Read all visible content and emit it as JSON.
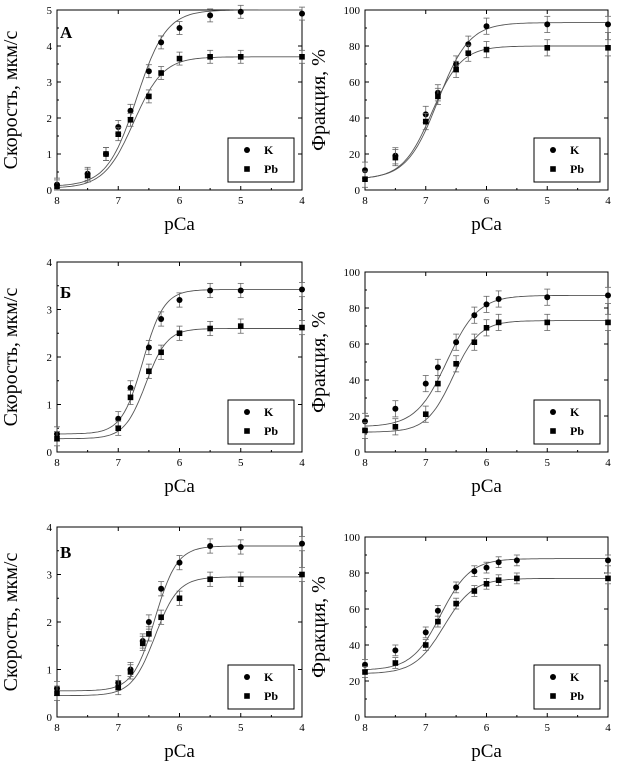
{
  "figure": {
    "rows": [
      {
        "label": "А"
      },
      {
        "label": "Б"
      },
      {
        "label": "В"
      }
    ]
  },
  "chart_data": [
    {
      "type": "scatter",
      "panel": "А",
      "xlabel": "pCa",
      "ylabel": "Скорость, мкм/с",
      "xlim": [
        8,
        4
      ],
      "x_reversed": true,
      "ylim": [
        0,
        5
      ],
      "xticks": [
        8,
        7,
        6,
        5,
        4
      ],
      "yticks": [
        0,
        1,
        2,
        3,
        4,
        5
      ],
      "grid": false,
      "legend_position": "bottom-right",
      "series": [
        {
          "name": "K",
          "marker": "circle",
          "x": [
            8.0,
            7.5,
            7.2,
            7.0,
            6.8,
            6.5,
            6.3,
            6.0,
            5.5,
            5.0,
            4.0
          ],
          "y": [
            0.15,
            0.45,
            1.0,
            1.75,
            2.2,
            3.3,
            4.1,
            4.5,
            4.85,
            4.95,
            4.9
          ],
          "fit": {
            "bottom": 0.1,
            "top": 5.0,
            "pCa50": 6.7,
            "hill": 1.8
          }
        },
        {
          "name": "Pb",
          "marker": "square",
          "x": [
            8.0,
            7.5,
            7.2,
            7.0,
            6.8,
            6.5,
            6.3,
            6.0,
            5.5,
            5.0,
            4.0
          ],
          "y": [
            0.1,
            0.4,
            1.0,
            1.55,
            1.95,
            2.6,
            3.25,
            3.65,
            3.7,
            3.7,
            3.7
          ],
          "fit": {
            "bottom": 0.05,
            "top": 3.7,
            "pCa50": 6.75,
            "hill": 1.8
          }
        }
      ]
    },
    {
      "type": "scatter",
      "panel": "А",
      "xlabel": "pCa",
      "ylabel": "Фракция, %",
      "xlim": [
        8,
        4
      ],
      "x_reversed": true,
      "ylim": [
        0,
        100
      ],
      "xticks": [
        8,
        7,
        6,
        5,
        4
      ],
      "yticks": [
        0,
        20,
        40,
        60,
        80,
        100
      ],
      "grid": false,
      "legend_position": "bottom-right",
      "series": [
        {
          "name": "K",
          "marker": "circle",
          "x": [
            8.0,
            7.5,
            7.0,
            6.8,
            6.5,
            6.3,
            6.0,
            5.0,
            4.0
          ],
          "y": [
            11,
            19,
            42,
            54,
            70,
            81,
            91,
            92,
            92
          ],
          "fit": {
            "bottom": 6,
            "top": 93,
            "pCa50": 6.8,
            "hill": 1.7
          }
        },
        {
          "name": "Pb",
          "marker": "square",
          "x": [
            8.0,
            7.5,
            7.0,
            6.8,
            6.5,
            6.3,
            6.0,
            5.0,
            4.0
          ],
          "y": [
            6,
            18,
            38,
            52,
            67,
            76,
            78,
            79,
            79
          ],
          "fit": {
            "bottom": 6,
            "top": 80,
            "pCa50": 6.9,
            "hill": 1.8
          }
        }
      ]
    },
    {
      "type": "scatter",
      "panel": "Б",
      "xlabel": "pCa",
      "ylabel": "Скорость, мкм/с",
      "xlim": [
        8,
        4
      ],
      "x_reversed": true,
      "ylim": [
        0,
        4
      ],
      "xticks": [
        8,
        7,
        6,
        5,
        4
      ],
      "yticks": [
        0,
        1,
        2,
        3,
        4
      ],
      "grid": false,
      "legend_position": "bottom-right",
      "series": [
        {
          "name": "K",
          "marker": "circle",
          "x": [
            8.0,
            7.0,
            6.8,
            6.5,
            6.3,
            6.0,
            5.5,
            5.0,
            4.0
          ],
          "y": [
            0.38,
            0.7,
            1.35,
            2.2,
            2.8,
            3.2,
            3.4,
            3.4,
            3.42
          ],
          "fit": {
            "bottom": 0.38,
            "top": 3.42,
            "pCa50": 6.6,
            "hill": 2.5
          }
        },
        {
          "name": "Pb",
          "marker": "square",
          "x": [
            8.0,
            7.0,
            6.8,
            6.5,
            6.3,
            6.0,
            5.5,
            5.0,
            4.0
          ],
          "y": [
            0.28,
            0.5,
            1.15,
            1.7,
            2.1,
            2.5,
            2.6,
            2.65,
            2.62
          ],
          "fit": {
            "bottom": 0.28,
            "top": 2.6,
            "pCa50": 6.55,
            "hill": 2.5
          }
        }
      ]
    },
    {
      "type": "scatter",
      "panel": "Б",
      "xlabel": "pCa",
      "ylabel": "Фракция, %",
      "xlim": [
        8,
        4
      ],
      "x_reversed": true,
      "ylim": [
        0,
        100
      ],
      "xticks": [
        8,
        7,
        6,
        5,
        4
      ],
      "yticks": [
        0,
        20,
        40,
        60,
        80,
        100
      ],
      "grid": false,
      "legend_position": "bottom-right",
      "series": [
        {
          "name": "K",
          "marker": "circle",
          "x": [
            8.0,
            7.5,
            7.0,
            6.8,
            6.5,
            6.2,
            6.0,
            5.8,
            5.0,
            4.0
          ],
          "y": [
            17,
            24,
            38,
            47,
            61,
            76,
            82,
            85,
            86,
            87
          ],
          "fit": {
            "bottom": 14,
            "top": 87,
            "pCa50": 6.65,
            "hill": 1.7
          }
        },
        {
          "name": "Pb",
          "marker": "square",
          "x": [
            8.0,
            7.5,
            7.0,
            6.8,
            6.5,
            6.2,
            6.0,
            5.8,
            5.0,
            4.0
          ],
          "y": [
            12,
            14,
            21,
            38,
            49,
            61,
            69,
            72,
            72,
            72
          ],
          "fit": {
            "bottom": 11,
            "top": 73,
            "pCa50": 6.55,
            "hill": 2.0
          }
        }
      ]
    },
    {
      "type": "scatter",
      "panel": "В",
      "xlabel": "pCa",
      "ylabel": "Скорость, мкм/с",
      "xlim": [
        8,
        4
      ],
      "x_reversed": true,
      "ylim": [
        0,
        4
      ],
      "xticks": [
        8,
        7,
        6,
        5,
        4
      ],
      "yticks": [
        0,
        1,
        2,
        3,
        4
      ],
      "grid": false,
      "legend_position": "bottom-right",
      "series": [
        {
          "name": "K",
          "marker": "circle",
          "x": [
            8.0,
            7.0,
            6.8,
            6.6,
            6.5,
            6.3,
            6.0,
            5.5,
            5.0,
            4.0
          ],
          "y": [
            0.6,
            0.72,
            1.0,
            1.6,
            2.0,
            2.7,
            3.25,
            3.6,
            3.58,
            3.65
          ],
          "fit": {
            "bottom": 0.55,
            "top": 3.6,
            "pCa50": 6.4,
            "hill": 2.4
          }
        },
        {
          "name": "Pb",
          "marker": "square",
          "x": [
            8.0,
            7.0,
            6.8,
            6.6,
            6.5,
            6.3,
            6.0,
            5.5,
            5.0,
            4.0
          ],
          "y": [
            0.5,
            0.62,
            0.95,
            1.55,
            1.75,
            2.1,
            2.5,
            2.9,
            2.9,
            3.0
          ],
          "fit": {
            "bottom": 0.45,
            "top": 2.95,
            "pCa50": 6.4,
            "hill": 2.3
          }
        }
      ]
    },
    {
      "type": "scatter",
      "panel": "В",
      "xlabel": "pCa",
      "ylabel": "Фракция, %",
      "xlim": [
        8,
        4
      ],
      "x_reversed": true,
      "ylim": [
        0,
        100
      ],
      "xticks": [
        8,
        7,
        6,
        5,
        4
      ],
      "yticks": [
        0,
        20,
        40,
        60,
        80,
        100
      ],
      "grid": false,
      "legend_position": "bottom-right",
      "series": [
        {
          "name": "K",
          "marker": "circle",
          "x": [
            8.0,
            7.5,
            7.0,
            6.8,
            6.5,
            6.2,
            6.0,
            5.8,
            5.5,
            4.0
          ],
          "y": [
            29,
            37,
            47,
            59,
            72,
            81,
            83,
            86,
            87,
            87
          ],
          "fit": {
            "bottom": 26,
            "top": 88,
            "pCa50": 6.75,
            "hill": 1.8
          }
        },
        {
          "name": "Pb",
          "marker": "square",
          "x": [
            8.0,
            7.5,
            7.0,
            6.8,
            6.5,
            6.2,
            6.0,
            5.8,
            5.5,
            4.0
          ],
          "y": [
            25,
            30,
            40,
            53,
            63,
            70,
            74,
            76,
            77,
            77
          ],
          "fit": {
            "bottom": 24,
            "top": 77,
            "pCa50": 6.7,
            "hill": 1.8
          }
        }
      ]
    }
  ]
}
